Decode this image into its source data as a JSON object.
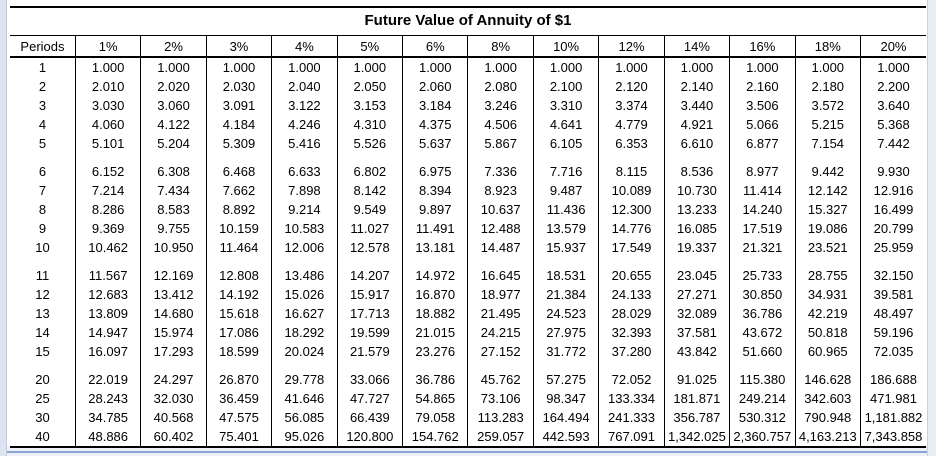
{
  "title": "Future Value of Annuity of $1",
  "table": {
    "columns": [
      "Periods",
      "1%",
      "2%",
      "3%",
      "4%",
      "5%",
      "6%",
      "8%",
      "10%",
      "12%",
      "14%",
      "16%",
      "18%",
      "20%"
    ],
    "groups": [
      {
        "rows": [
          {
            "period": "1",
            "values": [
              "1.000",
              "1.000",
              "1.000",
              "1.000",
              "1.000",
              "1.000",
              "1.000",
              "1.000",
              "1.000",
              "1.000",
              "1.000",
              "1.000",
              "1.000"
            ]
          },
          {
            "period": "2",
            "values": [
              "2.010",
              "2.020",
              "2.030",
              "2.040",
              "2.050",
              "2.060",
              "2.080",
              "2.100",
              "2.120",
              "2.140",
              "2.160",
              "2.180",
              "2.200"
            ]
          },
          {
            "period": "3",
            "values": [
              "3.030",
              "3.060",
              "3.091",
              "3.122",
              "3.153",
              "3.184",
              "3.246",
              "3.310",
              "3.374",
              "3.440",
              "3.506",
              "3.572",
              "3.640"
            ]
          },
          {
            "period": "4",
            "values": [
              "4.060",
              "4.122",
              "4.184",
              "4.246",
              "4.310",
              "4.375",
              "4.506",
              "4.641",
              "4.779",
              "4.921",
              "5.066",
              "5.215",
              "5.368"
            ]
          },
          {
            "period": "5",
            "values": [
              "5.101",
              "5.204",
              "5.309",
              "5.416",
              "5.526",
              "5.637",
              "5.867",
              "6.105",
              "6.353",
              "6.610",
              "6.877",
              "7.154",
              "7.442"
            ]
          }
        ]
      },
      {
        "rows": [
          {
            "period": "6",
            "values": [
              "6.152",
              "6.308",
              "6.468",
              "6.633",
              "6.802",
              "6.975",
              "7.336",
              "7.716",
              "8.115",
              "8.536",
              "8.977",
              "9.442",
              "9.930"
            ]
          },
          {
            "period": "7",
            "values": [
              "7.214",
              "7.434",
              "7.662",
              "7.898",
              "8.142",
              "8.394",
              "8.923",
              "9.487",
              "10.089",
              "10.730",
              "11.414",
              "12.142",
              "12.916"
            ]
          },
          {
            "period": "8",
            "values": [
              "8.286",
              "8.583",
              "8.892",
              "9.214",
              "9.549",
              "9.897",
              "10.637",
              "11.436",
              "12.300",
              "13.233",
              "14.240",
              "15.327",
              "16.499"
            ]
          },
          {
            "period": "9",
            "values": [
              "9.369",
              "9.755",
              "10.159",
              "10.583",
              "11.027",
              "11.491",
              "12.488",
              "13.579",
              "14.776",
              "16.085",
              "17.519",
              "19.086",
              "20.799"
            ]
          },
          {
            "period": "10",
            "values": [
              "10.462",
              "10.950",
              "11.464",
              "12.006",
              "12.578",
              "13.181",
              "14.487",
              "15.937",
              "17.549",
              "19.337",
              "21.321",
              "23.521",
              "25.959"
            ]
          }
        ]
      },
      {
        "rows": [
          {
            "period": "11",
            "values": [
              "11.567",
              "12.169",
              "12.808",
              "13.486",
              "14.207",
              "14.972",
              "16.645",
              "18.531",
              "20.655",
              "23.045",
              "25.733",
              "28.755",
              "32.150"
            ]
          },
          {
            "period": "12",
            "values": [
              "12.683",
              "13.412",
              "14.192",
              "15.026",
              "15.917",
              "16.870",
              "18.977",
              "21.384",
              "24.133",
              "27.271",
              "30.850",
              "34.931",
              "39.581"
            ]
          },
          {
            "period": "13",
            "values": [
              "13.809",
              "14.680",
              "15.618",
              "16.627",
              "17.713",
              "18.882",
              "21.495",
              "24.523",
              "28.029",
              "32.089",
              "36.786",
              "42.219",
              "48.497"
            ]
          },
          {
            "period": "14",
            "values": [
              "14.947",
              "15.974",
              "17.086",
              "18.292",
              "19.599",
              "21.015",
              "24.215",
              "27.975",
              "32.393",
              "37.581",
              "43.672",
              "50.818",
              "59.196"
            ]
          },
          {
            "period": "15",
            "values": [
              "16.097",
              "17.293",
              "18.599",
              "20.024",
              "21.579",
              "23.276",
              "27.152",
              "31.772",
              "37.280",
              "43.842",
              "51.660",
              "60.965",
              "72.035"
            ]
          }
        ]
      },
      {
        "rows": [
          {
            "period": "20",
            "values": [
              "22.019",
              "24.297",
              "26.870",
              "29.778",
              "33.066",
              "36.786",
              "45.762",
              "57.275",
              "72.052",
              "91.025",
              "115.380",
              "146.628",
              "186.688"
            ]
          },
          {
            "period": "25",
            "values": [
              "28.243",
              "32.030",
              "36.459",
              "41.646",
              "47.727",
              "54.865",
              "73.106",
              "98.347",
              "133.334",
              "181.871",
              "249.214",
              "342.603",
              "471.981"
            ]
          },
          {
            "period": "30",
            "values": [
              "34.785",
              "40.568",
              "47.575",
              "56.085",
              "66.439",
              "79.058",
              "113.283",
              "164.494",
              "241.333",
              "356.787",
              "530.312",
              "790.948",
              "1,181.882"
            ]
          },
          {
            "period": "40",
            "values": [
              "48.886",
              "60.402",
              "75.401",
              "95.026",
              "120.800",
              "154.762",
              "259.057",
              "442.593",
              "767.091",
              "1,342.025",
              "2,360.757",
              "4,163.213",
              "7,343.858"
            ]
          }
        ]
      }
    ]
  }
}
